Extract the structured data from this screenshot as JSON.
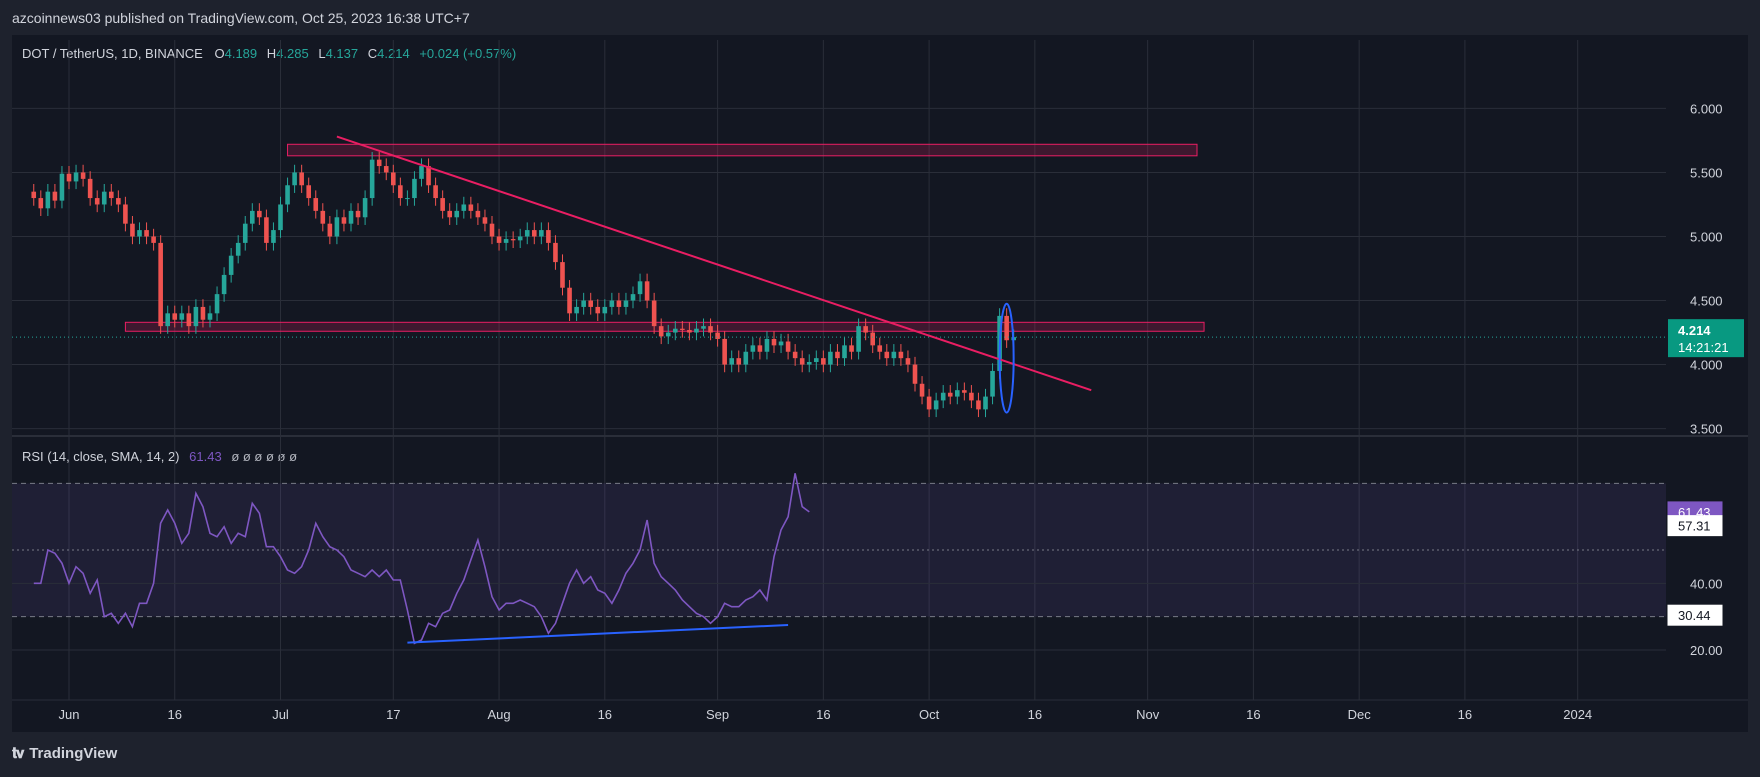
{
  "header": {
    "publish_line": "azcoinnews03 published on TradingView.com, Oct 25, 2023 16:38 UTC+7"
  },
  "footer": {
    "brand": "TradingView",
    "logo_icon": "tradingview-logo-icon"
  },
  "colors": {
    "background": "#131722",
    "frame": "#1e222d",
    "up": "#26a69a",
    "down": "#ef5350",
    "grid": "#2a2e39",
    "axis_text": "#d1d4dc",
    "rsi_line": "#7e57c2",
    "trendline": "#e91e63",
    "zone_fill": "#e91e6333",
    "zone_stroke": "#e91e63",
    "highlight_ellipse": "#2962ff",
    "divergence_line": "#2962ff",
    "last_price_bg": "#089981"
  },
  "chart_data": [
    {
      "type": "candlestick",
      "symbol_line": {
        "name": "DOT / TetherUS, 1D, BINANCE",
        "o_label": "O",
        "o_value": "4.189",
        "h_label": "H",
        "h_value": "4.285",
        "l_label": "L",
        "l_value": "4.137",
        "c_label": "C",
        "c_value": "4.214",
        "change": "+0.024 (+0.57%)"
      },
      "last_price_label": {
        "price": "4.214",
        "countdown": "14:21:21"
      },
      "y_ticks": [
        "6.000",
        "5.500",
        "5.000",
        "4.500",
        "4.000",
        "3.500"
      ],
      "y_tick_values": [
        6.0,
        5.5,
        5.0,
        4.5,
        4.0,
        3.5
      ],
      "ylim": [
        3.45,
        6.3
      ],
      "x_ticks": [
        "Jun",
        "16",
        "Jul",
        "17",
        "Aug",
        "16",
        "Sep",
        "16",
        "Oct",
        "16",
        "Nov",
        "16",
        "Dec",
        "16",
        "2024"
      ],
      "x_tick_days": [
        0,
        15,
        30,
        46,
        61,
        76,
        92,
        107,
        122,
        137,
        153,
        168,
        183,
        198,
        214
      ],
      "candle_closes": [
        5.3,
        5.22,
        5.35,
        5.28,
        5.49,
        5.43,
        5.5,
        5.45,
        5.3,
        5.25,
        5.35,
        5.3,
        5.25,
        5.1,
        5.0,
        5.05,
        5.0,
        4.95,
        4.3,
        4.4,
        4.35,
        4.4,
        4.3,
        4.45,
        4.35,
        4.4,
        4.55,
        4.7,
        4.85,
        4.95,
        5.1,
        5.2,
        5.15,
        4.95,
        5.05,
        5.25,
        5.4,
        5.5,
        5.4,
        5.3,
        5.2,
        5.1,
        5.0,
        5.15,
        5.1,
        5.2,
        5.15,
        5.3,
        5.6,
        5.55,
        5.5,
        5.4,
        5.3,
        5.3,
        5.45,
        5.55,
        5.4,
        5.3,
        5.2,
        5.15,
        5.2,
        5.25,
        5.2,
        5.15,
        5.1,
        5.0,
        4.95,
        4.98,
        4.97,
        5.0,
        5.05,
        5.0,
        5.05,
        4.95,
        4.8,
        4.6,
        4.4,
        4.45,
        4.5,
        4.45,
        4.4,
        4.45,
        4.5,
        4.45,
        4.5,
        4.55,
        4.65,
        4.5,
        4.3,
        4.22,
        4.25,
        4.28,
        4.27,
        4.25,
        4.28,
        4.3,
        4.25,
        4.2,
        4.0,
        4.05,
        4.0,
        4.1,
        4.15,
        4.1,
        4.2,
        4.15,
        4.18,
        4.1,
        4.05,
        4.0,
        4.02,
        4.05,
        4.0,
        4.1,
        4.05,
        4.15,
        4.1,
        4.3,
        4.25,
        4.15,
        4.1,
        4.05,
        4.1,
        4.05,
        4.0,
        3.85,
        3.75,
        3.65,
        3.72,
        3.78,
        3.75,
        3.8,
        3.78,
        3.72,
        3.65,
        3.75,
        3.95,
        4.38,
        4.19,
        4.214
      ],
      "rsi": {
        "label": "RSI (14, close, SMA, 14, 2)",
        "rsi_value": "61.43",
        "flags": "ø ø ø ø ø ø",
        "sma_value": "57.31",
        "lower_band_value": "30.44",
        "y_ticks": [
          "40.00",
          "20.00"
        ],
        "y_tick_values": [
          40,
          20
        ],
        "bands": [
          70,
          50,
          30
        ],
        "ylim": [
          20,
          74
        ],
        "values": [
          40,
          40,
          50,
          49,
          46,
          40,
          45,
          43,
          37,
          41,
          30,
          31,
          28,
          31,
          27,
          34,
          34,
          40,
          58,
          62,
          58,
          52,
          55,
          67,
          63,
          55,
          54,
          57,
          52,
          55,
          54,
          64,
          61,
          51,
          51,
          48,
          44,
          43,
          45,
          50,
          58,
          54,
          51,
          50,
          48,
          44,
          43,
          42,
          44,
          42,
          44,
          41,
          41,
          32,
          22,
          23,
          28,
          27,
          31,
          32,
          37,
          41,
          47,
          53,
          45,
          36,
          32,
          34,
          34,
          35,
          34,
          33,
          30,
          25,
          28,
          34,
          40,
          44,
          40,
          42,
          38,
          37,
          34,
          38,
          43,
          46,
          50,
          59,
          46,
          42,
          40,
          38,
          35,
          33,
          31,
          30,
          28,
          30,
          34,
          33,
          33,
          35,
          36,
          38,
          35,
          48,
          56,
          60,
          73,
          63,
          61.43
        ],
        "divergence_line": {
          "start_index": 53,
          "end_index": 107,
          "start_value": 22.2,
          "end_value": 27.5
        }
      },
      "trendline": {
        "start_index": 43,
        "start_price": 5.78,
        "end_index": 150,
        "end_price": 3.8
      },
      "zones": [
        {
          "from_index": 36,
          "to_index": 165,
          "price_low": 5.63,
          "price_high": 5.72
        },
        {
          "from_index": 13,
          "to_index": 166,
          "price_low": 4.26,
          "price_high": 4.33
        }
      ]
    }
  ]
}
